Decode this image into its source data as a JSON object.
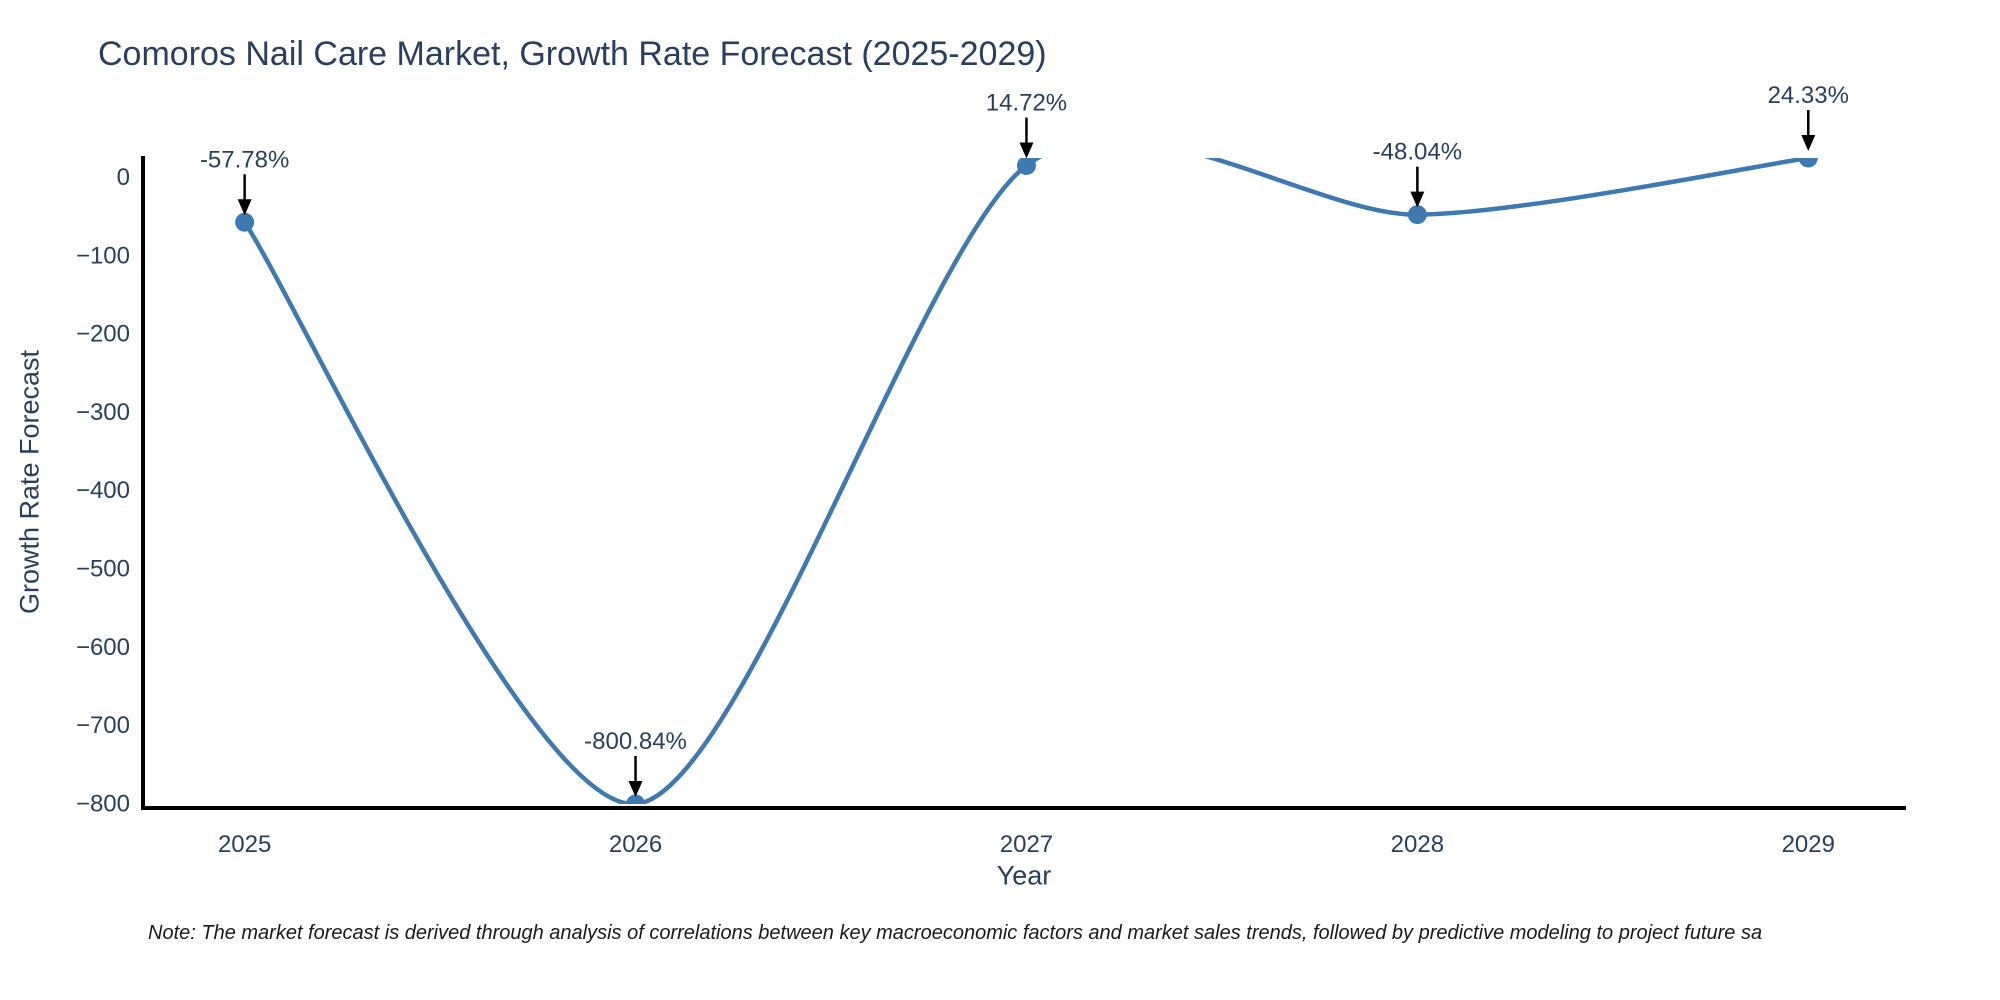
{
  "chart_data": {
    "type": "line",
    "title": "Comoros Nail Care Market, Growth Rate Forecast (2025-2029)",
    "xlabel": "Year",
    "ylabel": "Growth Rate Forecast",
    "x": [
      2025,
      2026,
      2027,
      2028,
      2029
    ],
    "xtick_labels": [
      "2025",
      "2026",
      "2027",
      "2028",
      "2029"
    ],
    "series": [
      {
        "name": "Growth Rate Forecast",
        "values": [
          -57.78,
          -800.84,
          14.72,
          -48.04,
          24.33
        ]
      }
    ],
    "point_labels": [
      "-57.78%",
      "-800.84%",
      "14.72%",
      "-48.04%",
      "24.33%"
    ],
    "yticks": [
      0,
      -100,
      -200,
      -300,
      -400,
      -500,
      -600,
      -700,
      -800
    ],
    "ytick_labels": [
      "0",
      "−100",
      "−200",
      "−300",
      "−400",
      "−500",
      "−600",
      "−700",
      "−800"
    ],
    "ylim": [
      -800.84,
      24.33
    ],
    "xlim": [
      2024.74,
      2029.25
    ],
    "line_shape": "spline",
    "grid": false,
    "legend": "none",
    "colors": {
      "line": "#3f79b1",
      "marker": "#3f79b1",
      "text": "#2a3f5f",
      "arrow": "#000000",
      "axis": "#000000",
      "background": "#ffffff"
    },
    "note": "Note: The market forecast is derived through analysis of correlations between key macroeconomic factors and market sales trends, followed by predictive modeling to project future sa"
  }
}
